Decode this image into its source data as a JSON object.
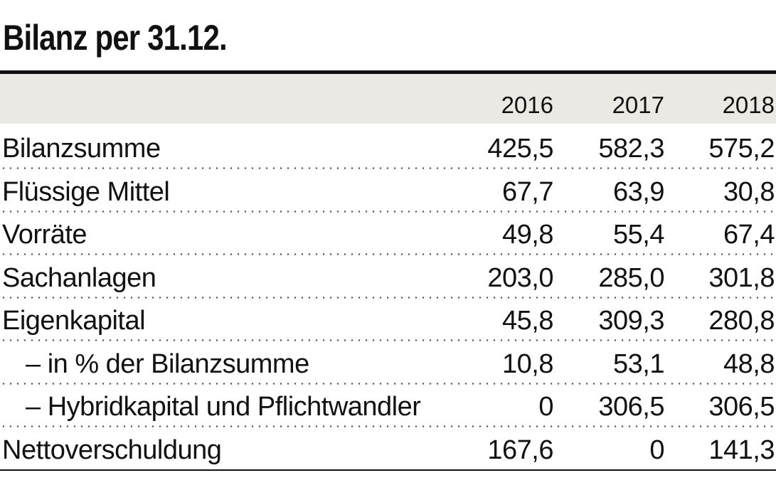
{
  "title": "Bilanz per 31.12.",
  "years": [
    "2016",
    "2017",
    "2018"
  ],
  "rows": [
    {
      "label": "Bilanzsumme",
      "values": [
        "425,5",
        "582,3",
        "575,2"
      ],
      "indent": false
    },
    {
      "label": "Flüssige Mittel",
      "values": [
        "67,7",
        "63,9",
        "30,8"
      ],
      "indent": false
    },
    {
      "label": "Vorräte",
      "values": [
        "49,8",
        "55,4",
        "67,4"
      ],
      "indent": false
    },
    {
      "label": "Sachanlagen",
      "values": [
        "203,0",
        "285,0",
        "301,8"
      ],
      "indent": false
    },
    {
      "label": "Eigenkapital",
      "values": [
        "45,8",
        "309,3",
        "280,8"
      ],
      "indent": false
    },
    {
      "label": "– in % der Bilanzsumme",
      "values": [
        "10,8",
        "53,1",
        "48,8"
      ],
      "indent": true
    },
    {
      "label": "– Hybridkapital und Pflichtwandler",
      "values": [
        "0",
        "306,5",
        "306,5"
      ],
      "indent": true
    },
    {
      "label": "Nettoverschuldung",
      "values": [
        "167,6",
        "0",
        "141,3"
      ],
      "indent": false
    }
  ],
  "colors": {
    "header_band": "#ebe9e4",
    "rule": "#111111",
    "text": "#111111"
  }
}
